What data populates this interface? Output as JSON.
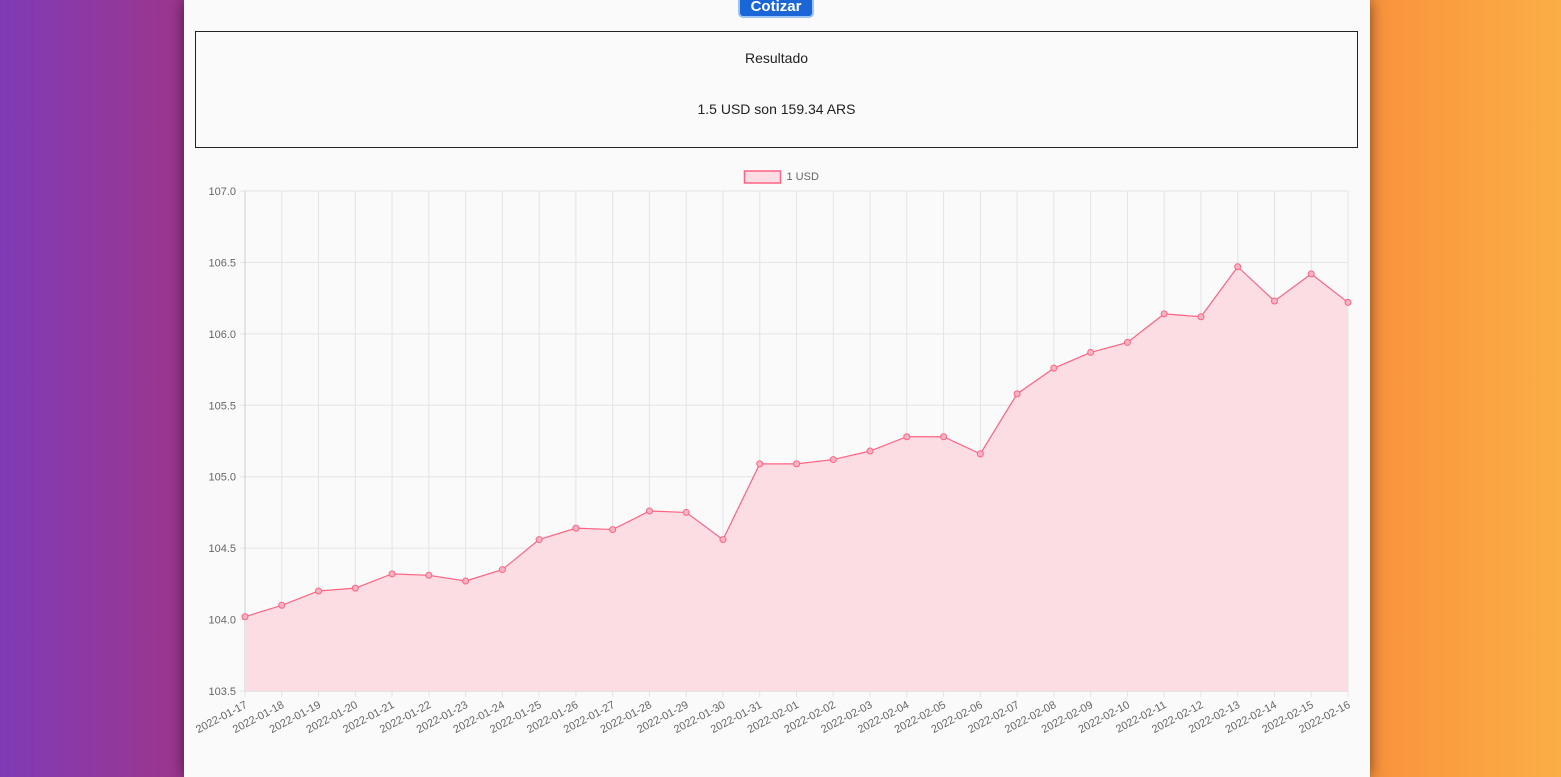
{
  "form": {
    "submit_label": "Cotizar"
  },
  "result": {
    "title": "Resultado",
    "text": "1.5 USD son 159.34 ARS"
  },
  "chart_data": {
    "type": "area",
    "series": [
      {
        "name": "1 USD",
        "color": "#ff6384",
        "values": [
          104.02,
          104.1,
          104.2,
          104.22,
          104.32,
          104.31,
          104.27,
          104.35,
          104.56,
          104.64,
          104.63,
          104.76,
          104.75,
          104.56,
          105.09,
          105.09,
          105.12,
          105.18,
          105.28,
          105.28,
          105.16,
          105.58,
          105.76,
          105.87,
          105.94,
          106.14,
          106.12,
          106.47,
          106.23,
          106.42,
          106.22
        ]
      }
    ],
    "x": [
      "2022-01-17",
      "2022-01-18",
      "2022-01-19",
      "2022-01-20",
      "2022-01-21",
      "2022-01-22",
      "2022-01-23",
      "2022-01-24",
      "2022-01-25",
      "2022-01-26",
      "2022-01-27",
      "2022-01-28",
      "2022-01-29",
      "2022-01-30",
      "2022-01-31",
      "2022-02-01",
      "2022-02-02",
      "2022-02-03",
      "2022-02-04",
      "2022-02-05",
      "2022-02-06",
      "2022-02-07",
      "2022-02-08",
      "2022-02-09",
      "2022-02-10",
      "2022-02-11",
      "2022-02-12",
      "2022-02-13",
      "2022-02-14",
      "2022-02-15",
      "2022-02-16"
    ],
    "ylim": [
      103.5,
      107.0
    ],
    "yticks": [
      "107.0",
      "106.5",
      "106.0",
      "105.5",
      "105.0",
      "104.5",
      "104.0",
      "103.5"
    ],
    "grid": true,
    "legend": "top-center",
    "fill_color": "#fbdde3"
  }
}
